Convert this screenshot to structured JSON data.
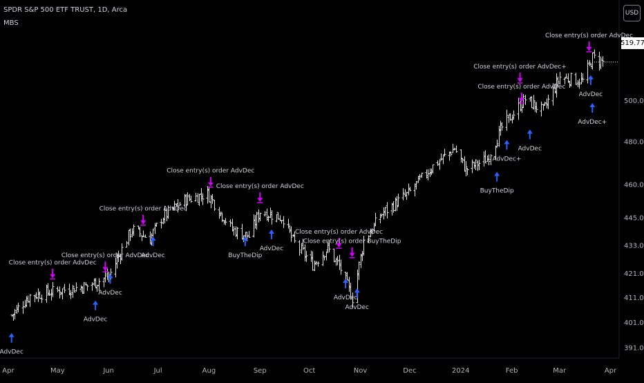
{
  "header": {
    "title": "SPDR S&P 500 ETF TRUST, 1D, Arca",
    "indicator": "MBS",
    "currency": "USD",
    "last_price": "519.77"
  },
  "colors": {
    "background": "#000000",
    "candle": "#e6e6e6",
    "entry_arrow": "#2962ff",
    "exit_arrow": "#d500f9",
    "axis_text": "#b2b5be",
    "label_text": "#d1d4dc"
  },
  "chart_data": {
    "type": "ohlc",
    "y_scale": "log",
    "ylim": [
      384,
      536
    ],
    "y_ticks": [
      "391.00",
      "401.00",
      "411.00",
      "421.00",
      "433.00",
      "445.00",
      "460.00",
      "480.00",
      "500.00"
    ],
    "x_ticks": [
      "Apr",
      "May",
      "Jun",
      "Jul",
      "Aug",
      "Sep",
      "Oct",
      "Nov",
      "Dec",
      "2024",
      "Feb",
      "Mar",
      "Apr"
    ],
    "close_path": [
      {
        "date": "2023-04-03",
        "close": 404
      },
      {
        "date": "2023-04-14",
        "close": 412
      },
      {
        "date": "2023-05-01",
        "close": 414
      },
      {
        "date": "2023-05-19",
        "close": 416
      },
      {
        "date": "2023-06-01",
        "close": 420
      },
      {
        "date": "2023-06-15",
        "close": 440
      },
      {
        "date": "2023-06-26",
        "close": 436
      },
      {
        "date": "2023-07-03",
        "close": 445
      },
      {
        "date": "2023-07-17",
        "close": 453
      },
      {
        "date": "2023-07-31",
        "close": 456
      },
      {
        "date": "2023-08-15",
        "close": 440
      },
      {
        "date": "2023-08-25",
        "close": 437
      },
      {
        "date": "2023-09-01",
        "close": 448
      },
      {
        "date": "2023-09-15",
        "close": 445
      },
      {
        "date": "2023-09-21",
        "close": 435
      },
      {
        "date": "2023-10-03",
        "close": 425
      },
      {
        "date": "2023-10-12",
        "close": 432
      },
      {
        "date": "2023-10-20",
        "close": 423
      },
      {
        "date": "2023-10-27",
        "close": 411
      },
      {
        "date": "2023-11-03",
        "close": 435
      },
      {
        "date": "2023-11-14",
        "close": 447
      },
      {
        "date": "2023-11-30",
        "close": 456
      },
      {
        "date": "2023-12-14",
        "close": 468
      },
      {
        "date": "2023-12-28",
        "close": 477
      },
      {
        "date": "2024-01-04",
        "close": 467
      },
      {
        "date": "2024-01-17",
        "close": 472
      },
      {
        "date": "2024-01-26",
        "close": 487
      },
      {
        "date": "2024-02-09",
        "close": 501
      },
      {
        "date": "2024-02-20",
        "close": 495
      },
      {
        "date": "2024-03-01",
        "close": 512
      },
      {
        "date": "2024-03-15",
        "close": 510
      },
      {
        "date": "2024-03-21",
        "close": 522
      },
      {
        "date": "2024-03-27",
        "close": 519.77
      }
    ],
    "signals": [
      {
        "date": "2023-04-03",
        "price": 397,
        "type": "entry",
        "label": "AdvDec"
      },
      {
        "date": "2023-04-28",
        "price": 418,
        "type": "exit",
        "label": "Close entry(s) order AdvDec"
      },
      {
        "date": "2023-05-24",
        "price": 410,
        "type": "entry",
        "label": "AdvDec"
      },
      {
        "date": "2023-05-30",
        "price": 421,
        "type": "exit",
        "label": "Close entry(s) order AdvDec"
      },
      {
        "date": "2023-06-02",
        "price": 421,
        "type": "entry",
        "label": "AdvDec"
      },
      {
        "date": "2023-06-22",
        "price": 441,
        "type": "exit",
        "label": "Close entry(s) order AdvDec"
      },
      {
        "date": "2023-06-28",
        "price": 437,
        "type": "entry",
        "label": "AdvDec"
      },
      {
        "date": "2023-08-02",
        "price": 458,
        "type": "exit",
        "label": "Close entry(s) order AdvDec"
      },
      {
        "date": "2023-08-23",
        "price": 437,
        "type": "entry",
        "label": "BuyTheDip"
      },
      {
        "date": "2023-09-01",
        "price": 451,
        "type": "exit",
        "label": "Close entry(s) order AdvDec"
      },
      {
        "date": "2023-09-08",
        "price": 440,
        "type": "entry",
        "label": "AdvDec"
      },
      {
        "date": "2023-10-19",
        "price": 431,
        "type": "exit",
        "label": "Close entry(s) order AdvDec"
      },
      {
        "date": "2023-10-23",
        "price": 419,
        "type": "entry",
        "label": "AdvDec"
      },
      {
        "date": "2023-10-27",
        "price": 427,
        "type": "exit",
        "label": "Close entry(s) order BuyTheDip"
      },
      {
        "date": "2023-10-30",
        "price": 415,
        "type": "entry",
        "label": "AdvDec"
      },
      {
        "date": "2024-01-23",
        "price": 466,
        "type": "entry",
        "label": "BuyTheDip"
      },
      {
        "date": "2024-01-29",
        "price": 481,
        "type": "entry",
        "label": "AdvDec+"
      },
      {
        "date": "2024-02-06",
        "price": 508,
        "type": "exit",
        "label": "Close entry(s) order AdvDec+"
      },
      {
        "date": "2024-02-07",
        "price": 498,
        "type": "exit",
        "label": "Close entry(s) order AdvDec"
      },
      {
        "date": "2024-02-12",
        "price": 486,
        "type": "entry",
        "label": "AdvDec"
      },
      {
        "date": "2024-03-19",
        "price": 524,
        "type": "exit",
        "label": "Close entry(s) order AdvDec"
      },
      {
        "date": "2024-03-20",
        "price": 513,
        "type": "entry",
        "label": "AdvDec"
      },
      {
        "date": "2024-03-21",
        "price": 499,
        "type": "entry",
        "label": "AdvDec+"
      }
    ]
  }
}
